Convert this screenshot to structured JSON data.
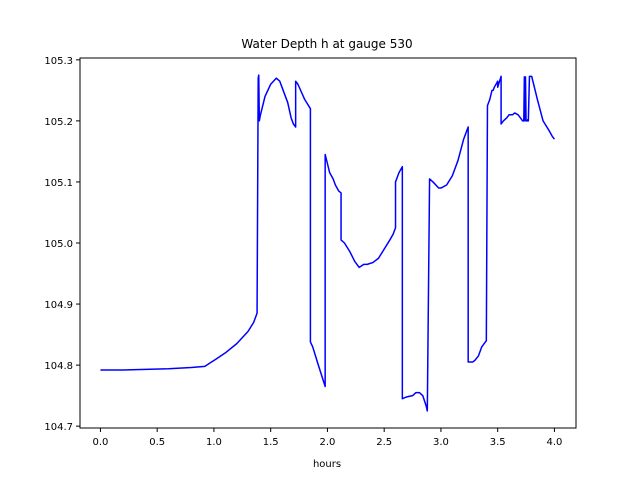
{
  "chart_data": {
    "type": "line",
    "title": "Water Depth h at gauge 530",
    "xlabel": "hours",
    "ylabel": "",
    "xlim": [
      -0.18,
      4.19
    ],
    "ylim": [
      104.697,
      105.303
    ],
    "xticks": [
      0.0,
      0.5,
      1.0,
      1.5,
      2.0,
      2.5,
      3.0,
      3.5,
      4.0
    ],
    "xtick_labels": [
      "0.0",
      "0.5",
      "1.0",
      "1.5",
      "2.0",
      "2.5",
      "3.0",
      "3.5",
      "4.0"
    ],
    "yticks": [
      104.7,
      104.8,
      104.9,
      105.0,
      105.1,
      105.2,
      105.3
    ],
    "ytick_labels": [
      "104.7",
      "104.8",
      "104.9",
      "105.0",
      "105.1",
      "105.2",
      "105.3"
    ],
    "grid": false,
    "legend": "none",
    "series": [
      {
        "color": "#0000ff",
        "x": [
          0.0,
          0.2,
          0.4,
          0.6,
          0.8,
          0.92,
          0.97,
          1.02,
          1.1,
          1.2,
          1.25,
          1.3,
          1.35,
          1.38,
          1.39,
          1.395,
          1.4,
          1.405,
          1.41,
          1.45,
          1.5,
          1.55,
          1.58,
          1.6,
          1.65,
          1.68,
          1.7,
          1.72,
          1.72,
          1.74,
          1.8,
          1.85,
          1.85,
          1.87,
          1.92,
          1.98,
          1.98,
          2.0,
          2.02,
          2.05,
          2.07,
          2.1,
          2.12,
          2.12,
          2.15,
          2.2,
          2.24,
          2.28,
          2.32,
          2.35,
          2.4,
          2.45,
          2.5,
          2.55,
          2.58,
          2.6,
          2.6,
          2.63,
          2.66,
          2.66,
          2.7,
          2.75,
          2.78,
          2.81,
          2.84,
          2.87,
          2.88,
          2.9,
          2.93,
          2.98,
          3.0,
          3.05,
          3.1,
          3.15,
          3.2,
          3.23,
          3.24,
          3.24,
          3.28,
          3.3,
          3.33,
          3.36,
          3.4,
          3.41,
          3.43,
          3.45,
          3.46,
          3.47,
          3.5,
          3.5,
          3.53,
          3.53,
          3.55,
          3.58,
          3.6,
          3.63,
          3.65,
          3.68,
          3.7,
          3.72,
          3.73,
          3.735,
          3.74,
          3.745,
          3.75,
          3.76,
          3.765,
          3.77,
          3.78,
          3.8,
          3.81,
          3.83,
          3.85,
          3.9,
          3.95,
          3.98,
          4.0
        ],
        "y": [
          104.792,
          104.792,
          104.793,
          104.794,
          104.796,
          104.798,
          104.804,
          104.81,
          104.82,
          104.835,
          104.845,
          104.855,
          104.87,
          104.885,
          105.27,
          105.275,
          105.2,
          105.205,
          105.21,
          105.24,
          105.26,
          105.27,
          105.265,
          105.255,
          105.23,
          105.205,
          105.195,
          105.19,
          105.265,
          105.26,
          105.235,
          105.22,
          104.838,
          104.83,
          104.8,
          104.765,
          105.145,
          105.13,
          105.115,
          105.105,
          105.095,
          105.085,
          105.082,
          105.005,
          105.0,
          104.985,
          104.97,
          104.96,
          104.965,
          104.965,
          104.968,
          104.975,
          104.99,
          105.005,
          105.015,
          105.025,
          105.1,
          105.115,
          105.125,
          104.745,
          104.748,
          104.75,
          104.755,
          104.755,
          104.75,
          104.733,
          104.725,
          105.105,
          105.1,
          105.09,
          105.09,
          105.095,
          105.11,
          105.135,
          105.17,
          105.185,
          105.19,
          104.805,
          104.805,
          104.808,
          104.815,
          104.83,
          104.84,
          105.225,
          105.235,
          105.25,
          105.25,
          105.255,
          105.265,
          105.255,
          105.273,
          105.195,
          105.2,
          105.205,
          105.21,
          105.21,
          105.213,
          105.21,
          105.205,
          105.2,
          105.2,
          105.272,
          105.2,
          105.272,
          105.2,
          105.2,
          105.202,
          105.2,
          105.273,
          105.273,
          105.265,
          105.25,
          105.235,
          105.2,
          105.185,
          105.175,
          105.17
        ]
      }
    ]
  }
}
